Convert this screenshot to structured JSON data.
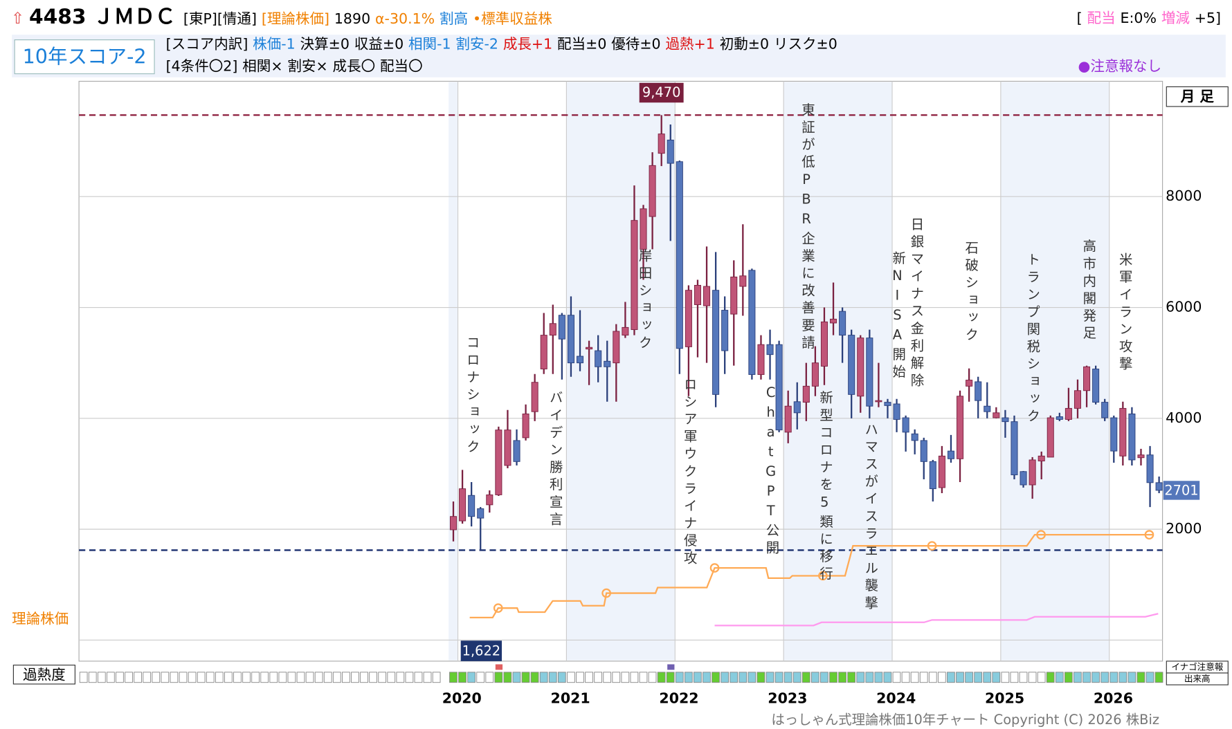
{
  "header": {
    "title": "4483 ＪＭＤＣ",
    "tags": [
      {
        "text": "[東P][情通]",
        "color": "#000000"
      },
      {
        "text": "[理論株価]",
        "color": "#f08000"
      },
      {
        "text": "1890",
        "color": "#000000"
      },
      {
        "text": "α-30.1%",
        "color": "#f08000"
      },
      {
        "text": "割高",
        "color": "#1a7fd8"
      },
      {
        "text": "•標準収益株",
        "color": "#f08000"
      }
    ],
    "right": [
      {
        "text": "[",
        "color": "#000000"
      },
      {
        "text": "配当",
        "color": "#ff66cc"
      },
      {
        "text": "E:0%",
        "color": "#000000"
      },
      {
        "text": "増減",
        "color": "#ff66cc"
      },
      {
        "text": "+5]",
        "color": "#000000"
      }
    ],
    "score": "10年スコア-2",
    "breakdown": [
      {
        "text": "[スコア内訳]",
        "color": "#000000"
      },
      {
        "text": "株価-1",
        "color": "#1a7fd8"
      },
      {
        "text": "決算±0",
        "color": "#000000"
      },
      {
        "text": "収益±0",
        "color": "#000000"
      },
      {
        "text": "相関-1",
        "color": "#1a7fd8"
      },
      {
        "text": "割安-2",
        "color": "#1a7fd8"
      },
      {
        "text": "成長+1",
        "color": "#dd1111"
      },
      {
        "text": "配当±0",
        "color": "#000000"
      },
      {
        "text": "優待±0",
        "color": "#000000"
      },
      {
        "text": "過熱+1",
        "color": "#dd1111"
      },
      {
        "text": "初動±0",
        "color": "#000000"
      },
      {
        "text": "リスク±0",
        "color": "#000000"
      }
    ],
    "conditions": [
      {
        "text": "[4条件〇2]",
        "color": "#000000"
      },
      {
        "text": "相関×",
        "color": "#000000"
      },
      {
        "text": "割安×",
        "color": "#000000"
      },
      {
        "text": "成長〇",
        "color": "#000000"
      },
      {
        "text": "配当〇",
        "color": "#000000"
      }
    ],
    "notice": "●注意報なし"
  },
  "labels": {
    "theory": "理論株価",
    "heat": "過熱度",
    "period": "月 足",
    "inago": "イナゴ注意報",
    "volume": "出来高",
    "copyright": "はっしゃん式理論株価10年チャート Copyright (C) 2026 株Biz"
  },
  "chart_data": {
    "type": "candlestick",
    "xlim": [
      2016.51,
      2026.49
    ],
    "xticks": [
      2020,
      2021,
      2022,
      2023,
      2024,
      2025,
      2026
    ],
    "ylim": [
      -380,
      10080
    ],
    "yticks": [
      2000,
      4000,
      6000,
      8000
    ],
    "grid": true,
    "up_color": "#c05578",
    "down_color": "#5577bb",
    "shaded_years": [
      2021,
      2023,
      2025
    ],
    "candles": [
      {
        "x": 2019.9583,
        "open": 1990,
        "high": 2500,
        "low": 1780,
        "close": 2230
      },
      {
        "x": 2020.0417,
        "open": 2150,
        "high": 3070,
        "low": 2100,
        "close": 2730
      },
      {
        "x": 2020.125,
        "open": 2610,
        "high": 2850,
        "low": 2050,
        "close": 2230
      },
      {
        "x": 2020.2083,
        "open": 2370,
        "high": 2400,
        "low": 1622,
        "close": 2200
      },
      {
        "x": 2020.2917,
        "open": 2440,
        "high": 2700,
        "low": 2300,
        "close": 2620
      },
      {
        "x": 2020.375,
        "open": 2620,
        "high": 3850,
        "low": 2600,
        "close": 3790
      },
      {
        "x": 2020.4583,
        "open": 3150,
        "high": 4150,
        "low": 3100,
        "close": 3790
      },
      {
        "x": 2020.5417,
        "open": 3600,
        "high": 3800,
        "low": 3150,
        "close": 3220
      },
      {
        "x": 2020.625,
        "open": 3650,
        "high": 4250,
        "low": 3600,
        "close": 4080
      },
      {
        "x": 2020.7083,
        "open": 4120,
        "high": 4800,
        "low": 3950,
        "close": 4650
      },
      {
        "x": 2020.7917,
        "open": 4890,
        "high": 5900,
        "low": 4800,
        "close": 5500
      },
      {
        "x": 2020.875,
        "open": 5500,
        "high": 6050,
        "low": 4800,
        "close": 5710
      },
      {
        "x": 2020.9583,
        "open": 5860,
        "high": 5900,
        "low": 4700,
        "close": 5430
      },
      {
        "x": 2021.0417,
        "open": 5860,
        "high": 6200,
        "low": 4750,
        "close": 5000
      },
      {
        "x": 2021.125,
        "open": 5120,
        "high": 5950,
        "low": 4850,
        "close": 5000
      },
      {
        "x": 2021.2083,
        "open": 5250,
        "high": 5400,
        "low": 4600,
        "close": 5280
      },
      {
        "x": 2021.2917,
        "open": 5220,
        "high": 5500,
        "low": 4650,
        "close": 4930
      },
      {
        "x": 2021.375,
        "open": 5030,
        "high": 5400,
        "low": 4300,
        "close": 4930
      },
      {
        "x": 2021.4583,
        "open": 5000,
        "high": 5700,
        "low": 4300,
        "close": 5570
      },
      {
        "x": 2021.5417,
        "open": 5500,
        "high": 6100,
        "low": 5450,
        "close": 5640
      },
      {
        "x": 2021.625,
        "open": 5600,
        "high": 8200,
        "low": 5500,
        "close": 7570
      },
      {
        "x": 2021.7083,
        "open": 7050,
        "high": 7850,
        "low": 6500,
        "close": 7780
      },
      {
        "x": 2021.7917,
        "open": 7640,
        "high": 8800,
        "low": 7050,
        "close": 8560
      },
      {
        "x": 2021.875,
        "open": 8780,
        "high": 9470,
        "low": 8550,
        "close": 9130
      },
      {
        "x": 2021.9583,
        "open": 9020,
        "high": 9300,
        "low": 7200,
        "close": 8600
      },
      {
        "x": 2022.0417,
        "open": 8630,
        "high": 8650,
        "low": 4800,
        "close": 5260
      },
      {
        "x": 2022.125,
        "open": 5290,
        "high": 6400,
        "low": 4400,
        "close": 6310
      },
      {
        "x": 2022.2083,
        "open": 6050,
        "high": 6500,
        "low": 5100,
        "close": 6400
      },
      {
        "x": 2022.2917,
        "open": 6030,
        "high": 7100,
        "low": 5000,
        "close": 6380
      },
      {
        "x": 2022.375,
        "open": 6310,
        "high": 7000,
        "low": 4200,
        "close": 4430
      },
      {
        "x": 2022.4583,
        "open": 5950,
        "high": 6200,
        "low": 4800,
        "close": 5220
      },
      {
        "x": 2022.5417,
        "open": 5880,
        "high": 6850,
        "low": 4950,
        "close": 6550
      },
      {
        "x": 2022.625,
        "open": 6380,
        "high": 7500,
        "low": 5850,
        "close": 6570
      },
      {
        "x": 2022.7083,
        "open": 6670,
        "high": 6700,
        "low": 4700,
        "close": 4790
      },
      {
        "x": 2022.7917,
        "open": 4790,
        "high": 5500,
        "low": 4700,
        "close": 5330
      },
      {
        "x": 2022.875,
        "open": 5330,
        "high": 5600,
        "low": 4700,
        "close": 5150
      },
      {
        "x": 2022.9583,
        "open": 5330,
        "high": 5400,
        "low": 3750,
        "close": 3790
      },
      {
        "x": 2023.0417,
        "open": 3750,
        "high": 4500,
        "low": 3550,
        "close": 4220
      },
      {
        "x": 2023.125,
        "open": 4300,
        "high": 4650,
        "low": 3800,
        "close": 4100
      },
      {
        "x": 2023.2083,
        "open": 4290,
        "high": 5000,
        "low": 3950,
        "close": 4580
      },
      {
        "x": 2023.2917,
        "open": 4580,
        "high": 5300,
        "low": 4400,
        "close": 5000
      },
      {
        "x": 2023.375,
        "open": 4940,
        "high": 6000,
        "low": 4600,
        "close": 5740
      },
      {
        "x": 2023.4583,
        "open": 5720,
        "high": 6450,
        "low": 5500,
        "close": 5790
      },
      {
        "x": 2023.5417,
        "open": 5930,
        "high": 6000,
        "low": 5000,
        "close": 5500
      },
      {
        "x": 2023.625,
        "open": 5500,
        "high": 5600,
        "low": 4000,
        "close": 4430
      },
      {
        "x": 2023.7083,
        "open": 4400,
        "high": 5500,
        "low": 4100,
        "close": 5450
      },
      {
        "x": 2023.7917,
        "open": 5450,
        "high": 5600,
        "low": 4000,
        "close": 4220
      },
      {
        "x": 2023.875,
        "open": 4300,
        "high": 5000,
        "low": 4200,
        "close": 4320
      },
      {
        "x": 2023.9583,
        "open": 4290,
        "high": 4350,
        "low": 4000,
        "close": 4230
      },
      {
        "x": 2024.0417,
        "open": 4260,
        "high": 4350,
        "low": 3750,
        "close": 3980
      },
      {
        "x": 2024.125,
        "open": 4010,
        "high": 4050,
        "low": 3400,
        "close": 3750
      },
      {
        "x": 2024.2083,
        "open": 3720,
        "high": 3800,
        "low": 3350,
        "close": 3600
      },
      {
        "x": 2024.2917,
        "open": 3600,
        "high": 3650,
        "low": 2900,
        "close": 3220
      },
      {
        "x": 2024.375,
        "open": 3220,
        "high": 3250,
        "low": 2500,
        "close": 2730
      },
      {
        "x": 2024.4583,
        "open": 2750,
        "high": 3500,
        "low": 2650,
        "close": 3320
      },
      {
        "x": 2024.5417,
        "open": 3410,
        "high": 3700,
        "low": 3200,
        "close": 3270
      },
      {
        "x": 2024.625,
        "open": 3270,
        "high": 4500,
        "low": 2850,
        "close": 4400
      },
      {
        "x": 2024.7083,
        "open": 4580,
        "high": 4900,
        "low": 4300,
        "close": 4690
      },
      {
        "x": 2024.7917,
        "open": 4660,
        "high": 4750,
        "low": 4000,
        "close": 4320
      },
      {
        "x": 2024.875,
        "open": 4220,
        "high": 4650,
        "low": 4000,
        "close": 4120
      },
      {
        "x": 2024.9583,
        "open": 4010,
        "high": 4200,
        "low": 4000,
        "close": 4100
      },
      {
        "x": 2025.0417,
        "open": 4010,
        "high": 4150,
        "low": 3650,
        "close": 3940
      },
      {
        "x": 2025.125,
        "open": 3940,
        "high": 4050,
        "low": 2900,
        "close": 2980
      },
      {
        "x": 2025.2083,
        "open": 3040,
        "high": 3050,
        "low": 2750,
        "close": 2800
      },
      {
        "x": 2025.2917,
        "open": 2800,
        "high": 3300,
        "low": 2550,
        "close": 3250
      },
      {
        "x": 2025.375,
        "open": 3230,
        "high": 3400,
        "low": 2900,
        "close": 3320
      },
      {
        "x": 2025.4583,
        "open": 3300,
        "high": 4050,
        "low": 3300,
        "close": 4010
      },
      {
        "x": 2025.5417,
        "open": 4030,
        "high": 4100,
        "low": 3950,
        "close": 3980
      },
      {
        "x": 2025.625,
        "open": 3980,
        "high": 4550,
        "low": 3950,
        "close": 4180
      },
      {
        "x": 2025.7083,
        "open": 4180,
        "high": 4700,
        "low": 4000,
        "close": 4500
      },
      {
        "x": 2025.7917,
        "open": 4500,
        "high": 4950,
        "low": 4200,
        "close": 4930
      },
      {
        "x": 2025.875,
        "open": 4890,
        "high": 4950,
        "low": 4250,
        "close": 4290
      },
      {
        "x": 2025.9583,
        "open": 4290,
        "high": 4350,
        "low": 3950,
        "close": 4010
      },
      {
        "x": 2026.0417,
        "open": 4010,
        "high": 4050,
        "low": 3200,
        "close": 3410
      },
      {
        "x": 2026.125,
        "open": 3320,
        "high": 4300,
        "low": 3150,
        "close": 4180
      },
      {
        "x": 2026.2083,
        "open": 4080,
        "high": 4200,
        "low": 3150,
        "close": 3250
      },
      {
        "x": 2026.2917,
        "open": 3290,
        "high": 3450,
        "low": 3150,
        "close": 3340
      },
      {
        "x": 2026.375,
        "open": 3340,
        "high": 3500,
        "low": 2400,
        "close": 2840
      },
      {
        "x": 2026.4583,
        "open": 2840,
        "high": 2950,
        "low": 2650,
        "close": 2701
      }
    ],
    "heat": [
      "#66cc33",
      "#66cc33",
      "#88ccdd",
      "#ffffff",
      "#ffffff",
      "#66cc33",
      "#66cc33",
      "#88ccdd",
      "#66cc33",
      "#66cc33",
      "#88ccdd",
      "#88ccdd",
      "#88ccdd",
      "#ffffff",
      "#ffffff",
      "#ffffff",
      "#ffffff",
      "#ffffff",
      "#ffffff",
      "#ffffff",
      "#ffffff",
      "#ffffff",
      "#ffffff",
      "#66cc33",
      "#66cc33",
      "#88ccdd",
      "#88ccdd",
      "#88ccdd",
      "#88ccdd",
      "#66cc33",
      "#88ccdd",
      "#88ccdd",
      "#88ccdd",
      "#88ccdd",
      "#66cc33",
      "#88ccdd",
      "#88ccdd",
      "#88ccdd",
      "#88ccdd",
      "#66cc33",
      "#88ccdd",
      "#88ccdd",
      "#66cc33",
      "#66cc33",
      "#66cc33",
      "#88ccdd",
      "#88ccdd",
      "#88ccdd",
      "#88ccdd",
      "#ffffff",
      "#ffffff",
      "#ffffff",
      "#ffffff",
      "#ffffff",
      "#ffffff",
      "#88ccdd",
      "#88ccdd",
      "#88ccdd",
      "#88ccdd",
      "#88ccdd",
      "#88ccdd",
      "#ffffff",
      "#ffffff",
      "#ffffff",
      "#ffffff",
      "#ffffff",
      "#66cc33",
      "#88ccdd",
      "#66cc33",
      "#88ccdd",
      "#88ccdd",
      "#88ccdd",
      "#88ccdd",
      "#88ccdd",
      "#88ccdd",
      "#88ccdd",
      "#66cc33",
      "#88ccdd",
      "#66cc33"
    ],
    "high_label": {
      "value": 9470,
      "label": "9,470"
    },
    "low_label": {
      "value": 1622,
      "label": "1,622"
    },
    "last_label": 2701,
    "theory": {
      "color": "#ffaa55",
      "x": [
        2020.109,
        2020.32,
        2020.371,
        2020.546,
        2020.56,
        2020.801,
        2020.873,
        2021.128,
        2021.15,
        2021.346,
        2021.368,
        2021.82,
        2021.84,
        2022.293,
        2022.365,
        2022.838,
        2022.86,
        2023.057,
        2023.08,
        2023.566,
        2023.639,
        2025.24,
        2025.313,
        2026.405
      ],
      "values": [
        406,
        406,
        577,
        577,
        505,
        505,
        706,
        706,
        620,
        620,
        847,
        847,
        947,
        947,
        1302,
        1302,
        1117,
        1117,
        1160,
        1160,
        1700,
        1700,
        1900,
        1900
      ]
    },
    "theory_points": {
      "x": [
        2020.371,
        2021.368,
        2022.365,
        2023.362,
        2024.367,
        2025.371,
        2026.368
      ],
      "values": [
        577,
        847,
        1302,
        1160,
        1700,
        1900,
        1900
      ]
    },
    "pink": {
      "color": "#ff99ee",
      "x": [
        2022.365,
        2023.276,
        2023.35,
        2024.294,
        2024.367,
        2025.24,
        2025.313,
        2026.332,
        2026.45
      ],
      "values": [
        263,
        263,
        320,
        320,
        363,
        363,
        420,
        420,
        477
      ]
    },
    "annotations": [
      {
        "text": "コロナショック",
        "x": 2020.124
      },
      {
        "text": "バイデン勝利宣言",
        "x": 2020.888
      },
      {
        "text": "岸田ショック",
        "x": 2021.71
      },
      {
        "text": "ロシア軍ウクライナ侵攻",
        "x": 2022.125
      },
      {
        "text": "東証が低PBR企業に改善要請",
        "x": 2023.21
      },
      {
        "text": "ChatGPT公開",
        "x": 2022.882
      },
      {
        "text": "新型コロナを5類に移行",
        "x": 2023.377
      },
      {
        "text": "ハマスがイスラエル襲撃",
        "x": 2023.792
      },
      {
        "text": "新NISA開始",
        "x": 2024.047
      },
      {
        "text": "日銀マイナス金利解除",
        "x": 2024.214
      },
      {
        "text": "石破ショック",
        "x": 2024.716
      },
      {
        "text": "トランプ関税ショック",
        "x": 2025.284
      },
      {
        "text": "高市内閣発足",
        "x": 2025.801
      },
      {
        "text": "米軍イラン攻撃",
        "x": 2026.135
      }
    ]
  }
}
